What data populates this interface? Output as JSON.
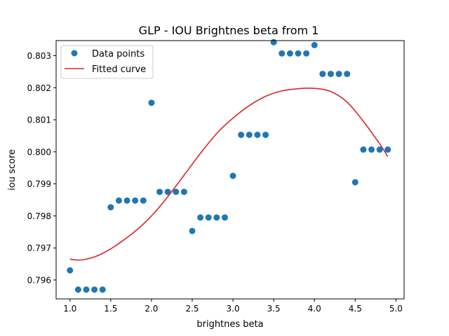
{
  "chart_data": {
    "type": "scatter",
    "title": "GLP - IOU Brightnes  beta from 1",
    "xlabel": "brightnes beta",
    "ylabel": "iou score",
    "xlim": [
      0.83,
      5.1
    ],
    "ylim": [
      0.79541,
      0.80347
    ],
    "xticks": [
      1.0,
      1.5,
      2.0,
      2.5,
      3.0,
      3.5,
      4.0,
      4.5,
      5.0
    ],
    "xtick_labels": [
      "1.0",
      "1.5",
      "2.0",
      "2.5",
      "3.0",
      "3.5",
      "4.0",
      "4.5",
      "5.0"
    ],
    "yticks": [
      0.796,
      0.797,
      0.798,
      0.799,
      0.8,
      0.801,
      0.802,
      0.803
    ],
    "ytick_labels": [
      "0.796",
      "0.797",
      "0.798",
      "0.799",
      "0.800",
      "0.801",
      "0.802",
      "0.803"
    ],
    "grid": false,
    "legend_position": "top-left",
    "series": [
      {
        "name": "Data points",
        "kind": "scatter",
        "color": "#1f77b4",
        "x": [
          1.0,
          1.1,
          1.2,
          1.3,
          1.4,
          1.5,
          1.6,
          1.7,
          1.8,
          1.9,
          2.0,
          2.1,
          2.2,
          2.3,
          2.4,
          2.5,
          2.6,
          2.7,
          2.8,
          2.9,
          3.0,
          3.1,
          3.2,
          3.3,
          3.4,
          3.5,
          3.6,
          3.7,
          3.8,
          3.9,
          4.0,
          4.1,
          4.2,
          4.3,
          4.4,
          4.5,
          4.6,
          4.7,
          4.8,
          4.9
        ],
        "y": [
          0.7963,
          0.7957,
          0.7957,
          0.7957,
          0.7957,
          0.79827,
          0.79848,
          0.79848,
          0.79848,
          0.79848,
          0.80153,
          0.79875,
          0.79875,
          0.79875,
          0.79875,
          0.79753,
          0.79795,
          0.79795,
          0.79795,
          0.79795,
          0.79925,
          0.80053,
          0.80053,
          0.80053,
          0.80053,
          0.80342,
          0.80307,
          0.80307,
          0.80307,
          0.80307,
          0.80333,
          0.80243,
          0.80243,
          0.80243,
          0.80243,
          0.79905,
          0.80007,
          0.80007,
          0.80007,
          0.80007
        ]
      },
      {
        "name": "Fitted curve",
        "kind": "line",
        "color": "#d62728",
        "x": [
          1.0,
          1.1,
          1.2,
          1.3,
          1.4,
          1.5,
          1.6,
          1.8,
          2.0,
          2.2,
          2.4,
          2.6,
          2.8,
          3.0,
          3.2,
          3.4,
          3.6,
          3.8,
          4.0,
          4.2,
          4.4,
          4.6,
          4.8,
          4.9
        ],
        "y": [
          0.79665,
          0.79662,
          0.79665,
          0.79672,
          0.79683,
          0.79697,
          0.79714,
          0.79752,
          0.798,
          0.7986,
          0.79927,
          0.79995,
          0.80057,
          0.80105,
          0.80144,
          0.80173,
          0.8019,
          0.80197,
          0.80198,
          0.80188,
          0.80155,
          0.80095,
          0.80025,
          0.79985
        ]
      }
    ]
  }
}
